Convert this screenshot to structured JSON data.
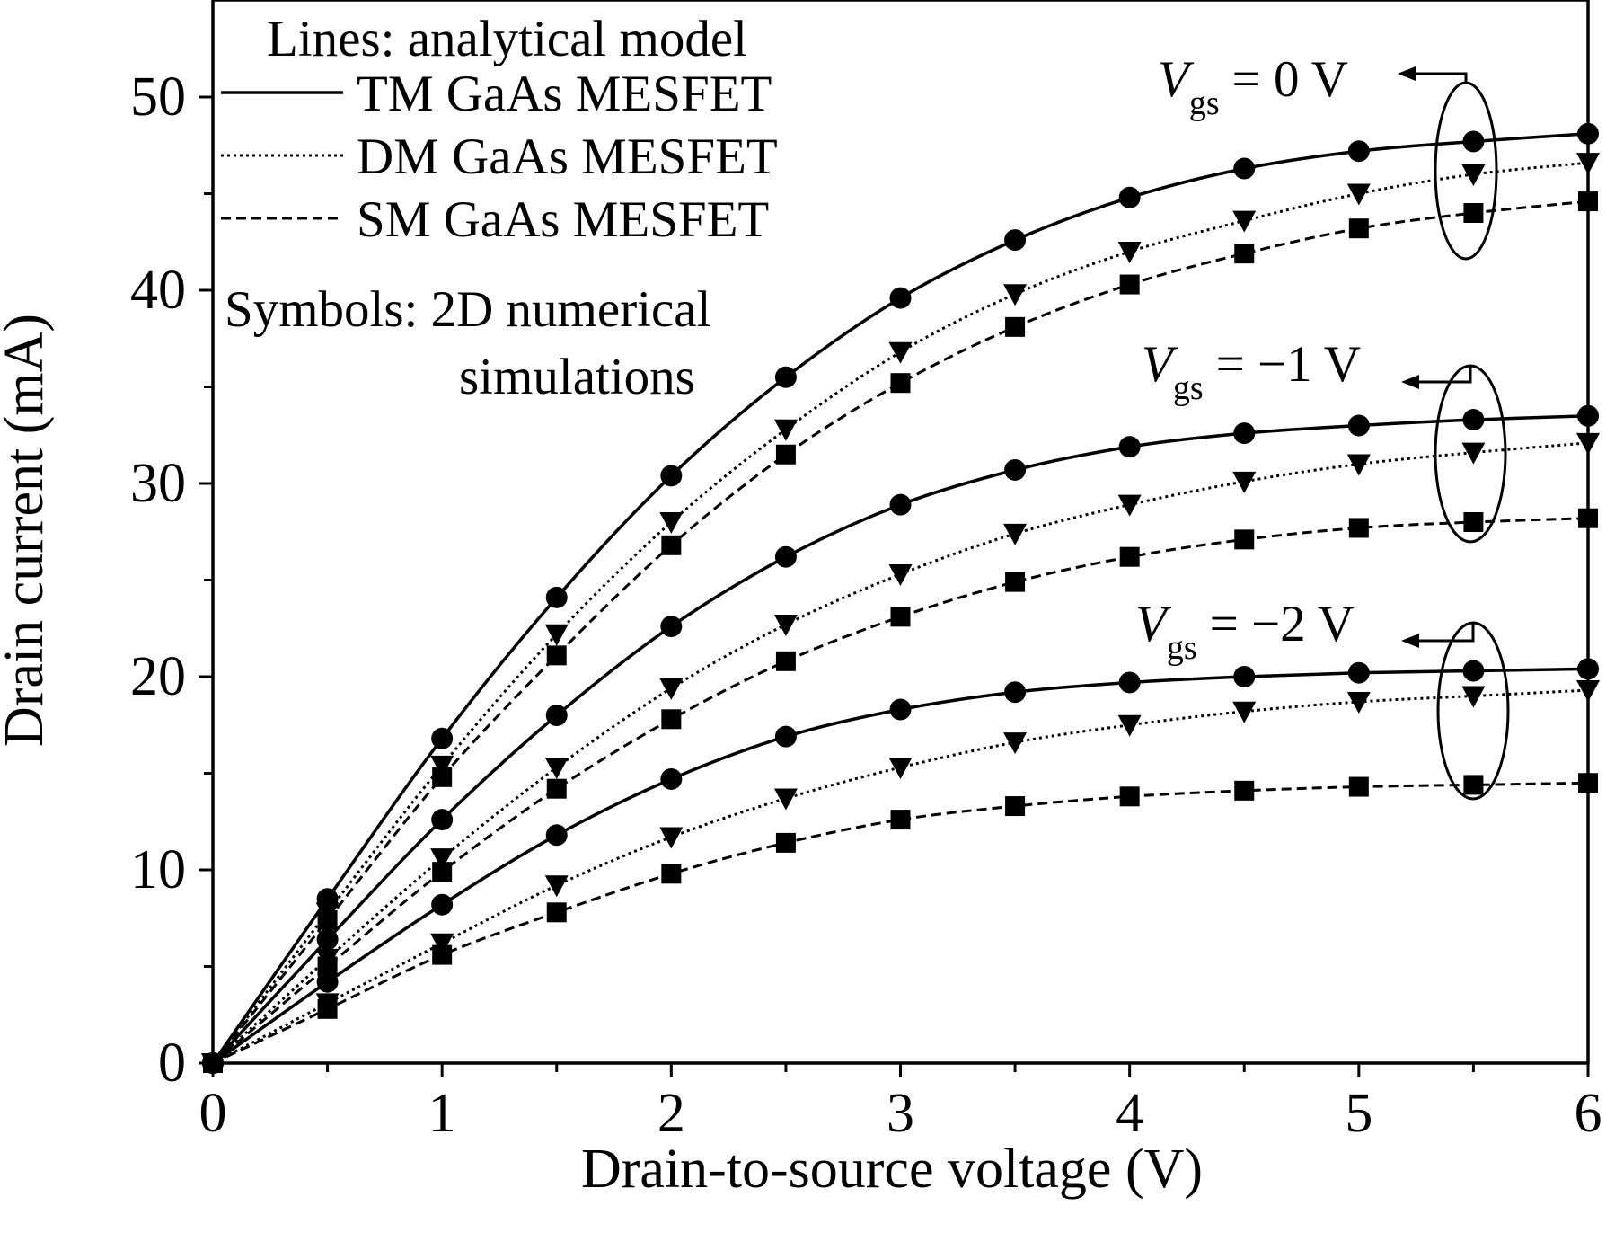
{
  "chart_data": {
    "type": "line",
    "title": "",
    "xlabel": "Drain-to-source voltage (V)",
    "ylabel": "Drain current (mA)",
    "xlim": [
      0,
      6
    ],
    "ylim": [
      0,
      55
    ],
    "x_ticks": [
      "0",
      "1",
      "2",
      "3",
      "4",
      "5",
      "6"
    ],
    "y_ticks": [
      "0",
      "10",
      "20",
      "30",
      "40",
      "50"
    ],
    "grid": false,
    "legend_position": "top-left",
    "legend": {
      "header": "Lines: analytical model",
      "entries": [
        "TM GaAs MESFET",
        "DM GaAs MESFET",
        "SM GaAs MESFET"
      ],
      "symbols_note_line1": "Symbols: 2D numerical",
      "symbols_note_line2": "simulations"
    },
    "annotations": [
      {
        "prefix": "V",
        "sub": "gs",
        "suffix": "= 0 V"
      },
      {
        "prefix": "V",
        "sub": "gs",
        "suffix": "= −1 V"
      },
      {
        "prefix": "V",
        "sub": "gs",
        "suffix": "= −2 V"
      }
    ],
    "x": [
      0,
      0.5,
      1,
      1.5,
      2,
      2.5,
      3,
      3.5,
      4,
      4.5,
      5,
      5.5,
      6
    ],
    "series": [
      {
        "name": "TM GaAs MESFET",
        "vgs": "0 V",
        "line": "solid",
        "marker": "circle",
        "values": [
          0,
          8.5,
          16.8,
          24.1,
          30.4,
          35.5,
          39.6,
          42.6,
          44.8,
          46.3,
          47.2,
          47.7,
          48.1
        ]
      },
      {
        "name": "DM GaAs MESFET",
        "vgs": "0 V",
        "line": "dotted",
        "marker": "triangle-down",
        "values": [
          0,
          7.8,
          15.4,
          22.2,
          28.0,
          32.8,
          36.8,
          39.8,
          42.0,
          43.6,
          45.0,
          46.0,
          46.6
        ]
      },
      {
        "name": "SM GaAs MESFET",
        "vgs": "0 V",
        "line": "dashed",
        "marker": "square",
        "values": [
          0,
          7.4,
          14.8,
          21.1,
          26.8,
          31.5,
          35.2,
          38.1,
          40.3,
          41.9,
          43.2,
          44.0,
          44.6
        ]
      },
      {
        "name": "TM GaAs MESFET",
        "vgs": "−1 V",
        "line": "solid",
        "marker": "circle",
        "values": [
          0,
          6.4,
          12.6,
          18.0,
          22.6,
          26.2,
          28.9,
          30.7,
          31.9,
          32.6,
          33.0,
          33.3,
          33.5
        ]
      },
      {
        "name": "DM GaAs MESFET",
        "vgs": "−1 V",
        "line": "dotted",
        "marker": "triangle-down",
        "values": [
          0,
          5.4,
          10.6,
          15.3,
          19.4,
          22.7,
          25.3,
          27.4,
          28.9,
          30.1,
          31.0,
          31.6,
          32.1
        ]
      },
      {
        "name": "SM GaAs MESFET",
        "vgs": "−1 V",
        "line": "dashed",
        "marker": "square",
        "values": [
          0,
          5.0,
          9.9,
          14.2,
          17.8,
          20.8,
          23.1,
          24.9,
          26.2,
          27.1,
          27.7,
          28.0,
          28.2
        ]
      },
      {
        "name": "TM GaAs MESFET",
        "vgs": "−2 V",
        "line": "solid",
        "marker": "circle",
        "values": [
          0,
          4.2,
          8.2,
          11.8,
          14.7,
          16.9,
          18.3,
          19.2,
          19.7,
          20.0,
          20.2,
          20.3,
          20.4
        ]
      },
      {
        "name": "DM GaAs MESFET",
        "vgs": "−2 V",
        "line": "dotted",
        "marker": "triangle-down",
        "values": [
          0,
          3.1,
          6.2,
          9.2,
          11.7,
          13.7,
          15.3,
          16.6,
          17.5,
          18.2,
          18.7,
          19.0,
          19.3
        ]
      },
      {
        "name": "SM GaAs MESFET",
        "vgs": "−2 V",
        "line": "dashed",
        "marker": "square",
        "values": [
          0,
          2.8,
          5.6,
          7.8,
          9.8,
          11.4,
          12.6,
          13.3,
          13.8,
          14.1,
          14.3,
          14.4,
          14.5
        ]
      }
    ]
  }
}
